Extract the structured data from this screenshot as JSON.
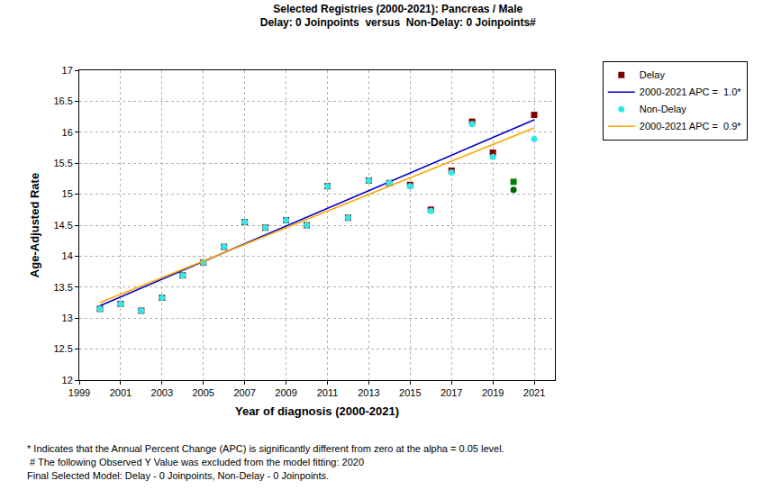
{
  "chart_data": {
    "type": "scatter",
    "title": "Selected Registries (2000-2021): Pancreas / Male",
    "subtitle": "Delay: 0 Joinpoints  versus  Non-Delay: 0 Joinpoints#",
    "x_label": "Year of diagnosis (2000-2021)",
    "y_label": "Age-Adjusted Rate",
    "x": [
      2000,
      2001,
      2002,
      2003,
      2004,
      2005,
      2006,
      2007,
      2008,
      2009,
      2010,
      2011,
      2012,
      2013,
      2014,
      2015,
      2016,
      2017,
      2018,
      2019,
      2020,
      2021
    ],
    "series": [
      {
        "name": "Delay",
        "type": "scatter",
        "marker": "square",
        "colors": [
          "#800000",
          "#800000",
          "#800000",
          "#800000",
          "#800000",
          "#800000",
          "#800000",
          "#800000",
          "#800000",
          "#800000",
          "#800000",
          "#800000",
          "#800000",
          "#800000",
          "#800000",
          "#800000",
          "#800000",
          "#800000",
          "#800000",
          "#800000",
          "#008000",
          "#800000"
        ],
        "values": [
          13.15,
          13.23,
          13.12,
          13.33,
          13.69,
          13.9,
          14.15,
          14.55,
          14.46,
          14.58,
          14.5,
          15.13,
          14.62,
          15.22,
          15.18,
          15.15,
          14.75,
          15.38,
          16.17,
          15.67,
          15.2,
          16.28
        ]
      },
      {
        "name": "2000-2021 APC =  1.0*",
        "type": "line",
        "line_style": "solid",
        "color": "#0000cd",
        "x": [
          2000,
          2021
        ],
        "values": [
          13.2,
          16.2
        ]
      },
      {
        "name": "Non-Delay",
        "type": "scatter",
        "marker": "circle",
        "colors": [
          "#33e6e6",
          "#33e6e6",
          "#33e6e6",
          "#33e6e6",
          "#33e6e6",
          "#33e6e6",
          "#33e6e6",
          "#33e6e6",
          "#33e6e6",
          "#33e6e6",
          "#33e6e6",
          "#33e6e6",
          "#33e6e6",
          "#33e6e6",
          "#33e6e6",
          "#33e6e6",
          "#33e6e6",
          "#33e6e6",
          "#33e6e6",
          "#33e6e6",
          "#006400",
          "#33e6e6"
        ],
        "values": [
          13.15,
          13.23,
          13.12,
          13.33,
          13.69,
          13.9,
          14.15,
          14.55,
          14.46,
          14.58,
          14.5,
          15.13,
          14.62,
          15.22,
          15.18,
          15.13,
          14.73,
          15.35,
          16.13,
          15.6,
          15.07,
          15.89
        ]
      },
      {
        "name": "2000-2021 APC =  0.9*",
        "type": "line",
        "line_style": "solid",
        "color": "#ffa500",
        "x": [
          2000,
          2021
        ],
        "values": [
          13.25,
          16.07
        ]
      }
    ],
    "xlim": [
      1999,
      2022
    ],
    "xticks": [
      1999,
      2001,
      2003,
      2005,
      2007,
      2009,
      2011,
      2013,
      2015,
      2017,
      2019,
      2021
    ],
    "ylim": [
      12,
      17
    ],
    "yticks": [
      12,
      12.5,
      13,
      13.5,
      14,
      14.5,
      15,
      15.5,
      16,
      16.5,
      17
    ],
    "grid": true,
    "legend": "right",
    "annotations": [
      "* Indicates that the Annual Percent Change (APC) is significantly different from zero at the alpha = 0.05 level.",
      " # The following Observed Y Value was excluded from the model fitting: 2020",
      "Final Selected Model: Delay - 0 Joinpoints, Non-Delay - 0 Joinpoints."
    ]
  }
}
